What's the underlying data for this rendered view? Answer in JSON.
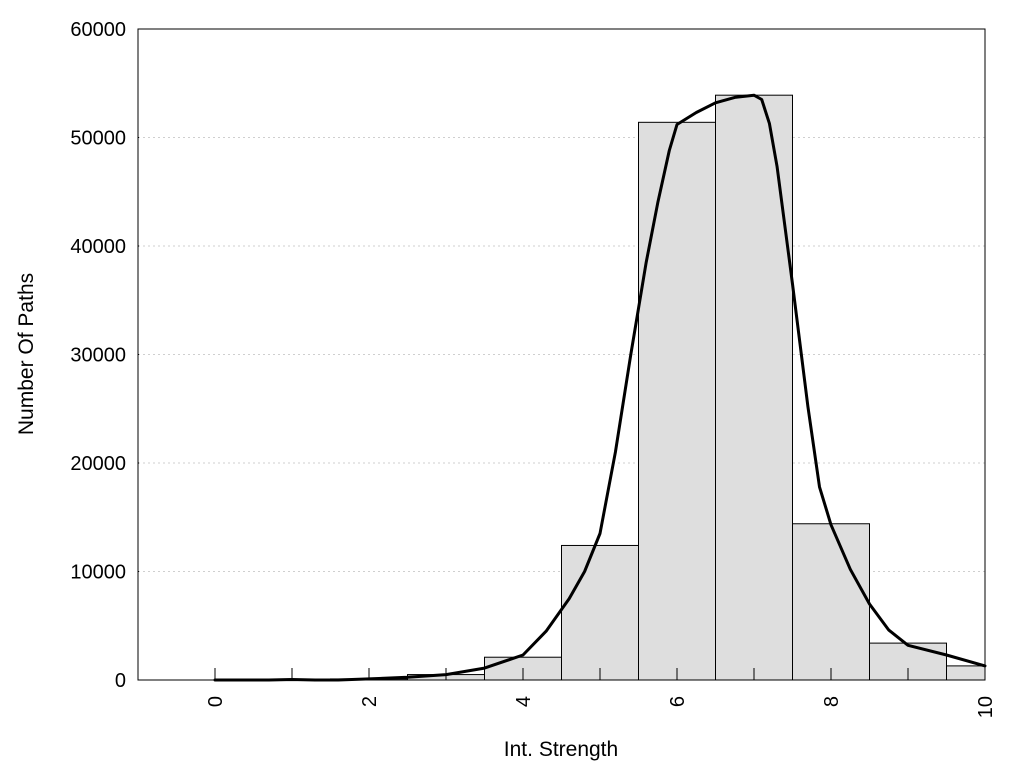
{
  "chart_data": {
    "type": "bar",
    "title": "",
    "xlabel": "Int. Strength",
    "ylabel": "Number Of Paths",
    "xlim": [
      -1,
      10
    ],
    "ylim": [
      0,
      60000
    ],
    "x_ticks": [
      "0",
      "2",
      "4",
      "6",
      "8",
      "10"
    ],
    "y_ticks": [
      "0",
      "10000",
      "20000",
      "30000",
      "40000",
      "50000",
      "60000"
    ],
    "grid": "horizontal dotted",
    "legend": "none",
    "bars": {
      "x": [
        0,
        1,
        2,
        3,
        4,
        5,
        6,
        7,
        8,
        9,
        10
      ],
      "values": [
        0,
        50,
        100,
        500,
        2100,
        12400,
        51400,
        53900,
        14400,
        3400,
        1300
      ],
      "fill": "#dedede",
      "stroke": "#000000"
    },
    "curve": {
      "x": [
        0,
        0.5,
        0.7,
        1,
        1.3,
        1.6,
        2,
        2.5,
        3,
        3.5,
        4,
        4.3,
        4.6,
        4.8,
        5,
        5.2,
        5.4,
        5.6,
        5.75,
        5.9,
        6,
        6.25,
        6.5,
        6.75,
        7,
        7.1,
        7.2,
        7.3,
        7.5,
        7.7,
        7.85,
        8,
        8.25,
        8.5,
        8.75,
        9,
        9.5,
        10
      ],
      "y": [
        0,
        0,
        0,
        50,
        0,
        0,
        100,
        250,
        500,
        1100,
        2300,
        4500,
        7500,
        10000,
        13500,
        21000,
        30000,
        38500,
        44000,
        48800,
        51200,
        52300,
        53200,
        53700,
        53900,
        53500,
        51300,
        47300,
        36500,
        25200,
        17800,
        14300,
        10200,
        7000,
        4600,
        3200,
        2300,
        1300
      ],
      "stroke": "#000000"
    }
  }
}
